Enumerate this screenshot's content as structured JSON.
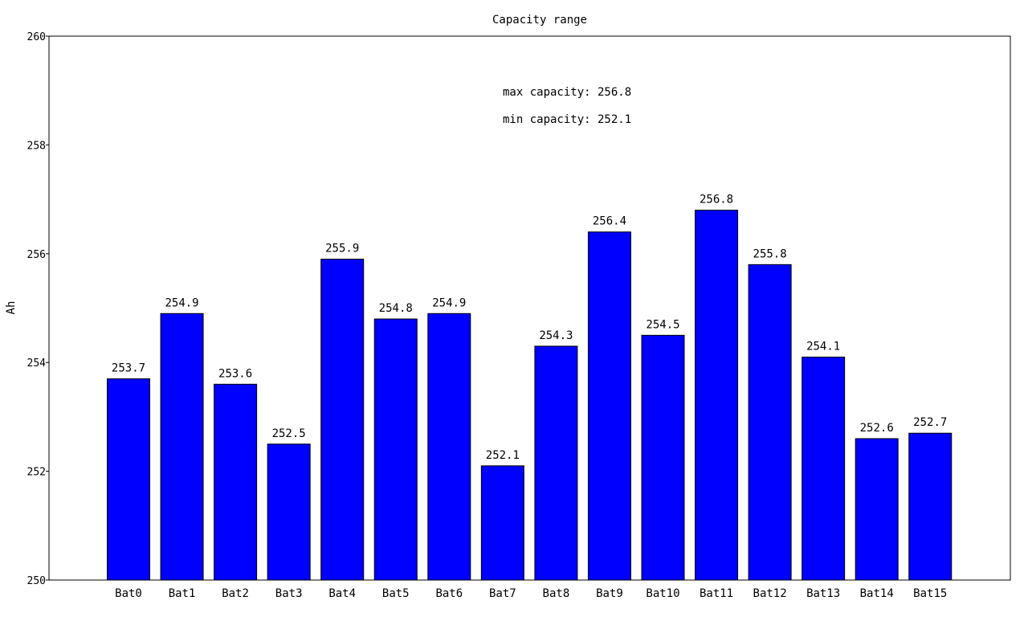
{
  "colors": {
    "bar": "#0000ff",
    "bar_stroke": "#000000",
    "axis": "#000000",
    "background": "#ffffff"
  },
  "chart_data": {
    "type": "bar",
    "title": "Capacity range",
    "xlabel": "",
    "ylabel": "Ah",
    "ylim": [
      250,
      260
    ],
    "y_ticks": [
      "250",
      "252",
      "254",
      "256",
      "258",
      "260"
    ],
    "grid": false,
    "categories": [
      "Bat0",
      "Bat1",
      "Bat2",
      "Bat3",
      "Bat4",
      "Bat5",
      "Bat6",
      "Bat7",
      "Bat8",
      "Bat9",
      "Bat10",
      "Bat11",
      "Bat12",
      "Bat13",
      "Bat14",
      "Bat15"
    ],
    "values": [
      253.7,
      254.9,
      253.6,
      252.5,
      255.9,
      254.8,
      254.9,
      252.1,
      254.3,
      256.4,
      254.5,
      256.8,
      255.8,
      254.1,
      252.6,
      252.7
    ],
    "value_labels": [
      "253.7",
      "254.9",
      "253.6",
      "252.5",
      "255.9",
      "254.8",
      "254.9",
      "252.1",
      "254.3",
      "256.4",
      "254.5",
      "256.8",
      "255.8",
      "254.1",
      "252.6",
      "252.7"
    ],
    "annotations": [
      "max capacity: 256.8",
      "min capacity: 252.1"
    ]
  }
}
